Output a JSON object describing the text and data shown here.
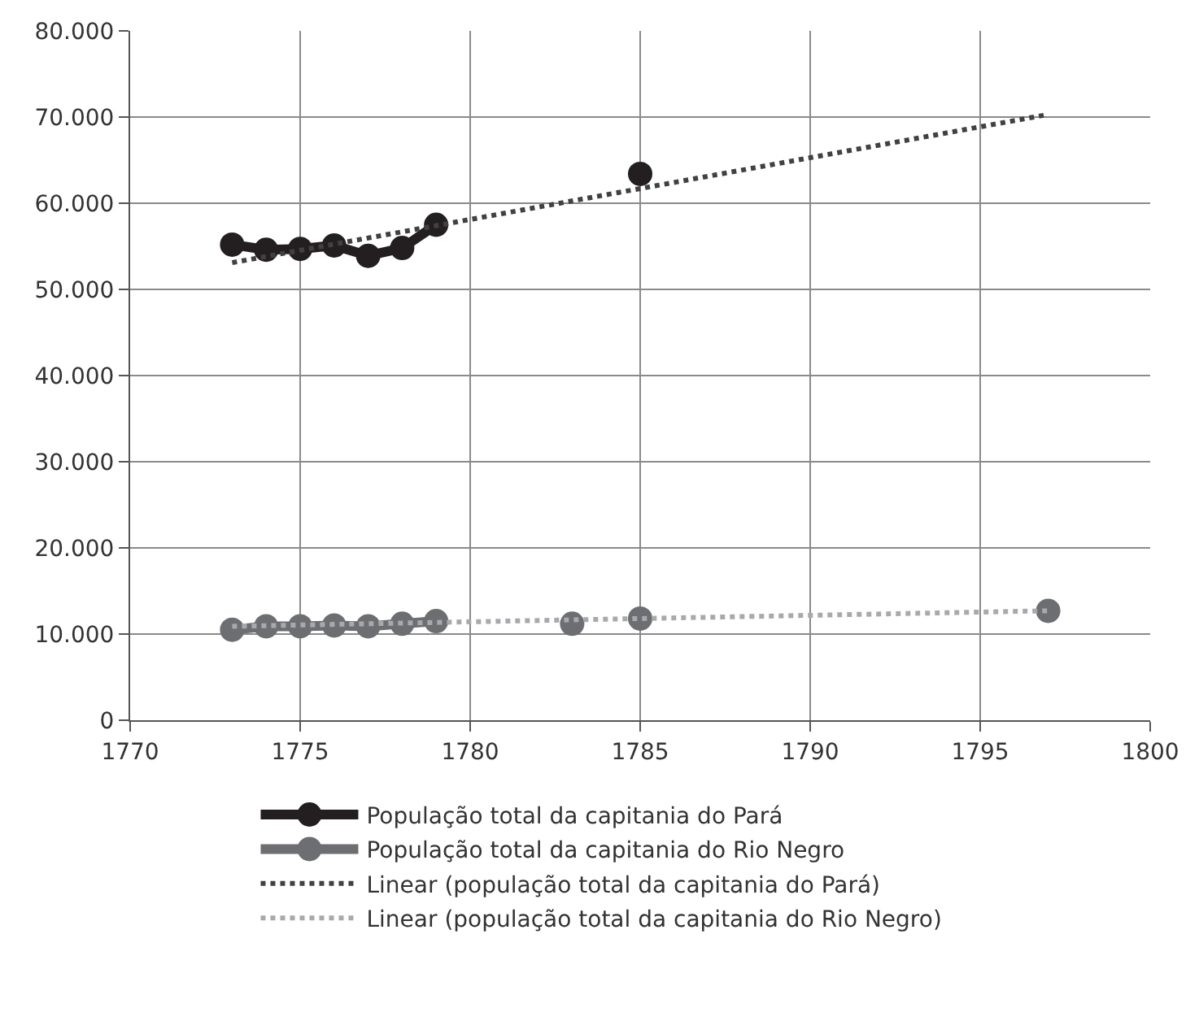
{
  "chart_data": {
    "type": "line",
    "x": [
      1773,
      1774,
      1775,
      1776,
      1777,
      1778,
      1779,
      1780,
      1783,
      1784,
      1785,
      1786,
      1797
    ],
    "series": [
      {
        "name": "População total da capitania do Pará",
        "color": "#231f20",
        "marker": "circle",
        "line_style": "solid",
        "values": [
          55200,
          54600,
          54700,
          55100,
          53900,
          54800,
          57500,
          null,
          null,
          null,
          63400,
          null,
          null
        ]
      },
      {
        "name": "População total da capitania do Rio Negro",
        "color": "#6d6e71",
        "marker": "circle",
        "line_style": "solid",
        "values": [
          10500,
          10900,
          10900,
          11000,
          10900,
          11200,
          11500,
          null,
          11200,
          null,
          11800,
          null,
          12700
        ]
      },
      {
        "name": "Linear (população total da capitania do Pará)",
        "color": "#414042",
        "marker": "none",
        "line_style": "dotted",
        "values": [
          53100,
          null,
          null,
          null,
          null,
          null,
          null,
          null,
          null,
          null,
          null,
          null,
          70300
        ]
      },
      {
        "name": "Linear (população total da capitania do Rio Negro)",
        "color": "#a7a9ac",
        "marker": "none",
        "line_style": "dotted",
        "values": [
          10900,
          null,
          null,
          null,
          null,
          null,
          null,
          null,
          null,
          null,
          null,
          null,
          12700
        ]
      }
    ],
    "xlim": [
      1770,
      1800
    ],
    "xticks": [
      1770,
      1775,
      1780,
      1785,
      1790,
      1795,
      1800
    ],
    "ylim": [
      0,
      80000
    ],
    "yticks": [
      {
        "value": 0,
        "label": "0"
      },
      {
        "value": 10000,
        "label": "10.000"
      },
      {
        "value": 20000,
        "label": "20.000"
      },
      {
        "value": 30000,
        "label": "30.000"
      },
      {
        "value": 40000,
        "label": "40.000"
      },
      {
        "value": 50000,
        "label": "50.000"
      },
      {
        "value": 60000,
        "label": "60.000"
      },
      {
        "value": 70000,
        "label": "70.000"
      },
      {
        "value": 80000,
        "label": "80.000"
      }
    ],
    "grid": true,
    "legend": "bottom"
  }
}
